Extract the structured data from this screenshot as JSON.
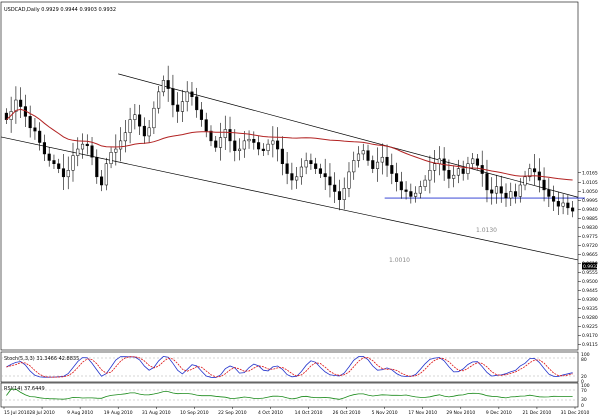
{
  "main_pane": {
    "title": "USDCAD,Daily  0.9929 0.9944 0.9903 0.9932",
    "y_ticks": [
      "1.0165",
      "1.0105",
      "1.0050",
      "0.9995",
      "0.9940",
      "0.9885",
      "0.9830",
      "0.9775",
      "0.9720",
      "0.9665",
      "0.9610",
      "0.9555",
      "0.9500",
      "0.9445",
      "0.9390",
      "0.9335",
      "0.9280",
      "0.9225",
      "0.9170",
      "0.9115"
    ],
    "last_price_tag": "0.9932",
    "annotations": {
      "upper_level": "1.0130",
      "lower_level": "1.0010"
    }
  },
  "stoch_pane": {
    "title": "Stoch(5,3,3) 31.3466 42.8835",
    "y_ticks": [
      "100",
      "80",
      "20",
      "0"
    ]
  },
  "rsi_pane": {
    "title": "RSI(14) 37.6449",
    "y_ticks": [
      "100",
      "70",
      "30",
      "0"
    ]
  },
  "x_axis": {
    "date_labels": [
      "15 Jul 2010",
      "28 Jul 2010",
      "9 Aug 2010",
      "19 Aug 2010",
      "31 Aug 2010",
      "10 Sep 2010",
      "22 Sep 2010",
      "4 Oct 2010",
      "14 Oct 2010",
      "26 Oct 2010",
      "5 Nov 2010",
      "17 Nov 2010",
      "29 Nov 2010",
      "9 Dec 2010",
      "21 Dec 2010",
      "31 Dec 2010"
    ]
  },
  "colors": {
    "candle": "#000000",
    "moving_average": "#b22222",
    "support_line": "#1f2fcf",
    "stoch_main": "#2233cc",
    "stoch_signal": "#dd1111",
    "rsi": "#1a8a1a",
    "channel": "#000000"
  },
  "chart_data": [
    {
      "type": "candlestick",
      "title": "USDCAD,Daily  0.9929 0.9944 0.9903 0.9932",
      "symbol": "USDCAD",
      "timeframe": "Daily",
      "x_label_dates": [
        "15 Jul 2010",
        "28 Jul 2010",
        "9 Aug 2010",
        "19 Aug 2010",
        "31 Aug 2010",
        "10 Sep 2010",
        "22 Sep 2010",
        "4 Oct 2010",
        "14 Oct 2010",
        "26 Oct 2010",
        "5 Nov 2010",
        "17 Nov 2010",
        "29 Nov 2010",
        "9 Dec 2010",
        "21 Dec 2010",
        "31 Dec 2010"
      ],
      "close": [
        1.049,
        1.054,
        1.061,
        1.057,
        1.051,
        1.044,
        1.042,
        1.035,
        1.028,
        1.024,
        1.022,
        1.019,
        1.014,
        1.018,
        1.027,
        1.031,
        1.034,
        1.033,
        1.026,
        1.014,
        1.009,
        1.022,
        1.029,
        1.031,
        1.036,
        1.041,
        1.049,
        1.052,
        1.045,
        1.039,
        1.044,
        1.056,
        1.066,
        1.073,
        1.068,
        1.058,
        1.054,
        1.06,
        1.066,
        1.063,
        1.055,
        1.049,
        1.042,
        1.036,
        1.032,
        1.038,
        1.043,
        1.036,
        1.03,
        1.031,
        1.036,
        1.037,
        1.035,
        1.031,
        1.03,
        1.034,
        1.036,
        1.031,
        1.022,
        1.016,
        1.012,
        1.014,
        1.02,
        1.024,
        1.022,
        1.019,
        1.016,
        1.014,
        1.009,
        1.005,
        1.0,
        1.007,
        1.017,
        1.024,
        1.028,
        1.03,
        1.024,
        1.019,
        1.023,
        1.026,
        1.021,
        1.016,
        1.011,
        1.006,
        1.005,
        1.002,
        1.004,
        1.008,
        1.012,
        1.018,
        1.022,
        1.025,
        1.018,
        1.013,
        1.015,
        1.019,
        1.016,
        1.022,
        1.025,
        1.021,
        1.016,
        1.006,
        1.004,
        1.008,
        1.004,
        1.001,
        1.005,
        1.002,
        1.009,
        1.014,
        1.019,
        1.017,
        1.012,
        1.006,
        1.002,
        0.999,
        0.996,
        0.998,
        0.995,
        0.993
      ],
      "moving_average": {
        "type": "SMA",
        "period": 50
      },
      "trend_channel": {
        "upper": [
          [
            "19 Aug 2010",
            1.077
          ],
          [
            "31 Dec 2010",
            1.002
          ]
        ],
        "lower": [
          [
            "15 Jul 2010",
            1.038
          ],
          [
            "31 Dec 2010",
            0.9635
          ]
        ]
      },
      "horizontal_line": {
        "from": "5 Nov 2010",
        "to": "31 Dec 2010",
        "price": 1.001
      },
      "annotations": [
        {
          "text": "1.0130"
        },
        {
          "text": "1.0010"
        }
      ],
      "y_ticks": [
        "1.0165",
        "1.0105",
        "1.0050",
        "0.9995",
        "0.9940",
        "0.9885",
        "0.9830",
        "0.9775",
        "0.9720",
        "0.9665",
        "0.9610",
        "0.9555",
        "0.9500",
        "0.9445",
        "0.9390",
        "0.9335",
        "0.9280",
        "0.9225",
        "0.9170",
        "0.9115"
      ],
      "ylim": [
        0.908,
        1.121
      ]
    },
    {
      "type": "line",
      "title": "Stoch(5,3,3) 31.3466 42.8835",
      "series": [
        {
          "name": "Stoch main"
        },
        {
          "name": "Stoch signal"
        }
      ],
      "last_values": [
        31.3466,
        42.8835
      ],
      "levels": [
        80,
        20
      ],
      "ylim": [
        0,
        100
      ]
    },
    {
      "type": "line",
      "title": "RSI(14) 37.6449",
      "series": [
        {
          "name": "RSI"
        }
      ],
      "last_values": [
        37.6449
      ],
      "levels": [
        70,
        30
      ],
      "ylim": [
        0,
        100
      ]
    }
  ]
}
